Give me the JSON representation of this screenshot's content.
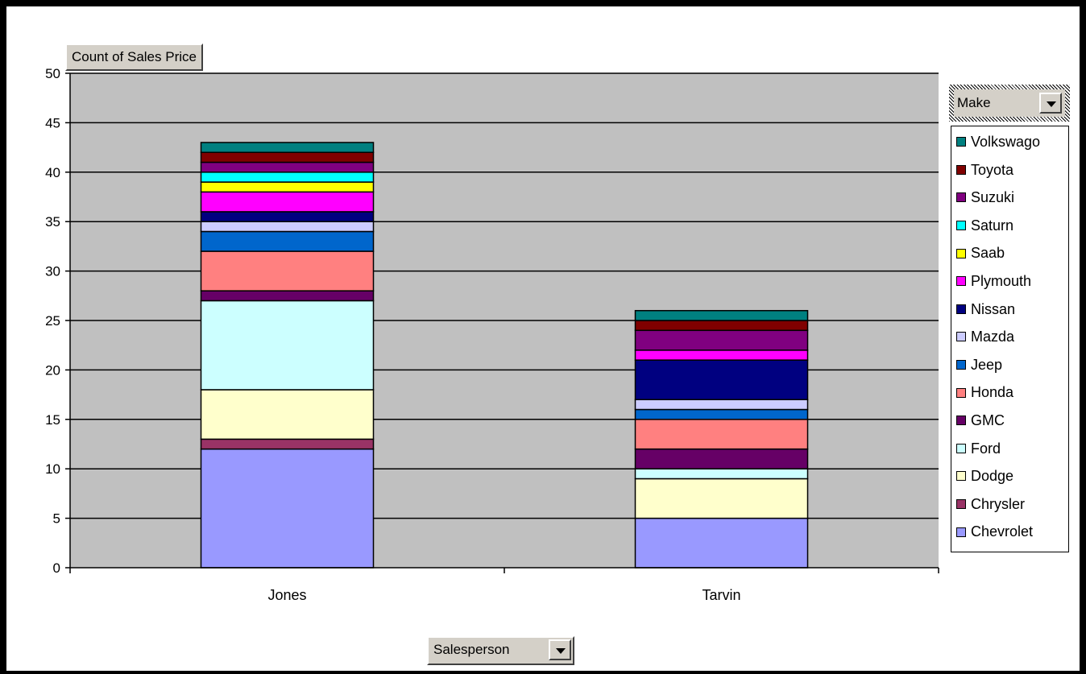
{
  "field_buttons": {
    "data_field": "Count of Sales Price",
    "series_field": "Make",
    "category_field": "Salesperson"
  },
  "chart_data": {
    "type": "bar",
    "stacked": true,
    "title": "",
    "xlabel": "",
    "ylabel": "",
    "ylim": [
      0,
      50
    ],
    "y_ticks": [
      0,
      5,
      10,
      15,
      20,
      25,
      30,
      35,
      40,
      45,
      50
    ],
    "grid": true,
    "legend_placement": "right",
    "categories": [
      "Jones",
      "Tarvin"
    ],
    "series": [
      {
        "name": "Chevrolet",
        "color": "#9999ff",
        "values": [
          12,
          5
        ]
      },
      {
        "name": "Chrysler",
        "color": "#993366",
        "values": [
          1,
          0
        ]
      },
      {
        "name": "Dodge",
        "color": "#ffffcc",
        "values": [
          5,
          4
        ]
      },
      {
        "name": "Ford",
        "color": "#ccffff",
        "values": [
          9,
          1
        ]
      },
      {
        "name": "GMC",
        "color": "#660066",
        "values": [
          1,
          2
        ]
      },
      {
        "name": "Honda",
        "color": "#ff8080",
        "values": [
          4,
          3
        ]
      },
      {
        "name": "Jeep",
        "color": "#0066cc",
        "values": [
          2,
          1
        ]
      },
      {
        "name": "Mazda",
        "color": "#ccccff",
        "values": [
          1,
          1
        ]
      },
      {
        "name": "Nissan",
        "color": "#000080",
        "values": [
          1,
          4
        ]
      },
      {
        "name": "Plymouth",
        "color": "#ff00ff",
        "values": [
          2,
          1
        ]
      },
      {
        "name": "Saab",
        "color": "#ffff00",
        "values": [
          1,
          0
        ]
      },
      {
        "name": "Saturn",
        "color": "#00ffff",
        "values": [
          1,
          0
        ]
      },
      {
        "name": "Suzuki",
        "color": "#800080",
        "values": [
          1,
          2
        ]
      },
      {
        "name": "Toyota",
        "color": "#800000",
        "values": [
          1,
          1
        ]
      },
      {
        "name": "Volkswago",
        "color": "#008080",
        "values": [
          1,
          1
        ]
      }
    ]
  }
}
